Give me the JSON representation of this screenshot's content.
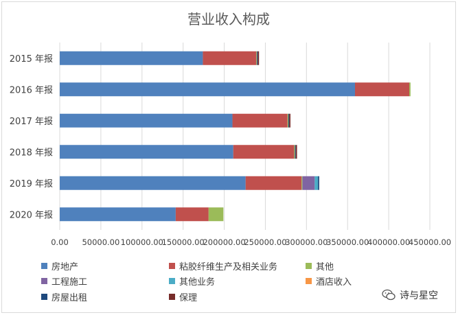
{
  "chart_data": {
    "type": "bar",
    "orientation": "horizontal",
    "stacked": true,
    "title": "营业收入构成",
    "categories": [
      "2015 年报",
      "2016 年报",
      "2017 年报",
      "2018 年报",
      "2019 年报",
      "2020 年报"
    ],
    "series": [
      {
        "name": "房地产",
        "color": "#4f81bd",
        "values": [
          174000,
          359000,
          210000,
          211000,
          226000,
          141000
        ]
      },
      {
        "name": "粘胶纤维生产及相关业务",
        "color": "#c0504d",
        "values": [
          65000,
          66000,
          67000,
          74000,
          68000,
          40000
        ]
      },
      {
        "name": "其他",
        "color": "#9bbb59",
        "values": [
          800,
          1500,
          1000,
          1000,
          1000,
          18000
        ]
      },
      {
        "name": "工程施工",
        "color": "#8064a2",
        "values": [
          0,
          0,
          0,
          0,
          15000,
          0
        ]
      },
      {
        "name": "其他业务",
        "color": "#4bacc6",
        "values": [
          0,
          0,
          0,
          0,
          4000,
          0
        ]
      },
      {
        "name": "酒店收入",
        "color": "#f79646",
        "values": [
          0,
          0,
          0,
          0,
          0,
          0
        ]
      },
      {
        "name": "房屋出租",
        "color": "#1f497d",
        "values": [
          1000,
          0,
          1000,
          1000,
          1500,
          0
        ]
      },
      {
        "name": "保理",
        "color": "#772c2a",
        "values": [
          1500,
          0,
          1500,
          1500,
          0,
          0
        ]
      }
    ],
    "xlim": [
      0,
      450000
    ],
    "xticks": [
      "0.00",
      "50000.00",
      "100000.00",
      "150000.00",
      "200000.00",
      "250000.00",
      "300000.00",
      "350000.00",
      "400000.00",
      "450000.00"
    ],
    "grid": true,
    "legend_position": "bottom"
  },
  "watermark": {
    "text": "诗与星空",
    "icon": "wechat-icon"
  }
}
